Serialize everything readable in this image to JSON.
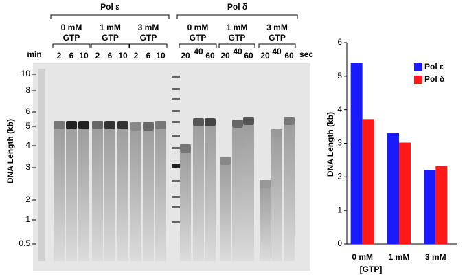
{
  "gel": {
    "y_axis_label": "DNA Length (kb)",
    "size_markers": [
      "10",
      "8",
      "6",
      "5",
      "4",
      "3",
      "2",
      "1",
      "0.5"
    ],
    "time_unit_left": "min",
    "time_unit_right": "sec",
    "panels": [
      {
        "title": "Pol ε",
        "groups": [
          {
            "label": "0 mM",
            "sub": "GTP",
            "lanes": [
              "2",
              "6",
              "10"
            ]
          },
          {
            "label": "1 mM",
            "sub": "GTP",
            "lanes": [
              "2",
              "6",
              "10"
            ]
          },
          {
            "label": "3 mM",
            "sub": "GTP",
            "lanes": [
              "2",
              "6",
              "10"
            ]
          }
        ]
      },
      {
        "title": "Pol δ",
        "groups": [
          {
            "label": "0 mM",
            "sub": "GTP",
            "lanes": [
              "20",
              "40",
              "60"
            ]
          },
          {
            "label": "1 mM",
            "sub": "GTP",
            "lanes": [
              "20",
              "40",
              "60"
            ]
          },
          {
            "label": "3 mM",
            "sub": "GTP",
            "lanes": [
              "20",
              "40",
              "60"
            ]
          }
        ]
      }
    ]
  },
  "chart_data": {
    "type": "bar",
    "y_label": "DNA Length (kb)",
    "x_label": "[GTP]",
    "categories": [
      "0 mM",
      "1 mM",
      "3 mM"
    ],
    "series": [
      {
        "name": "Pol ε",
        "color": "#1a1aff",
        "values": [
          5.4,
          3.3,
          2.2
        ]
      },
      {
        "name": "Pol δ",
        "color": "#ff1a1a",
        "values": [
          3.72,
          3.02,
          2.32
        ]
      }
    ],
    "ylim": [
      0,
      6
    ],
    "yticks": [
      0,
      1,
      2,
      3,
      4,
      5,
      6
    ],
    "legend": "upper-right"
  }
}
